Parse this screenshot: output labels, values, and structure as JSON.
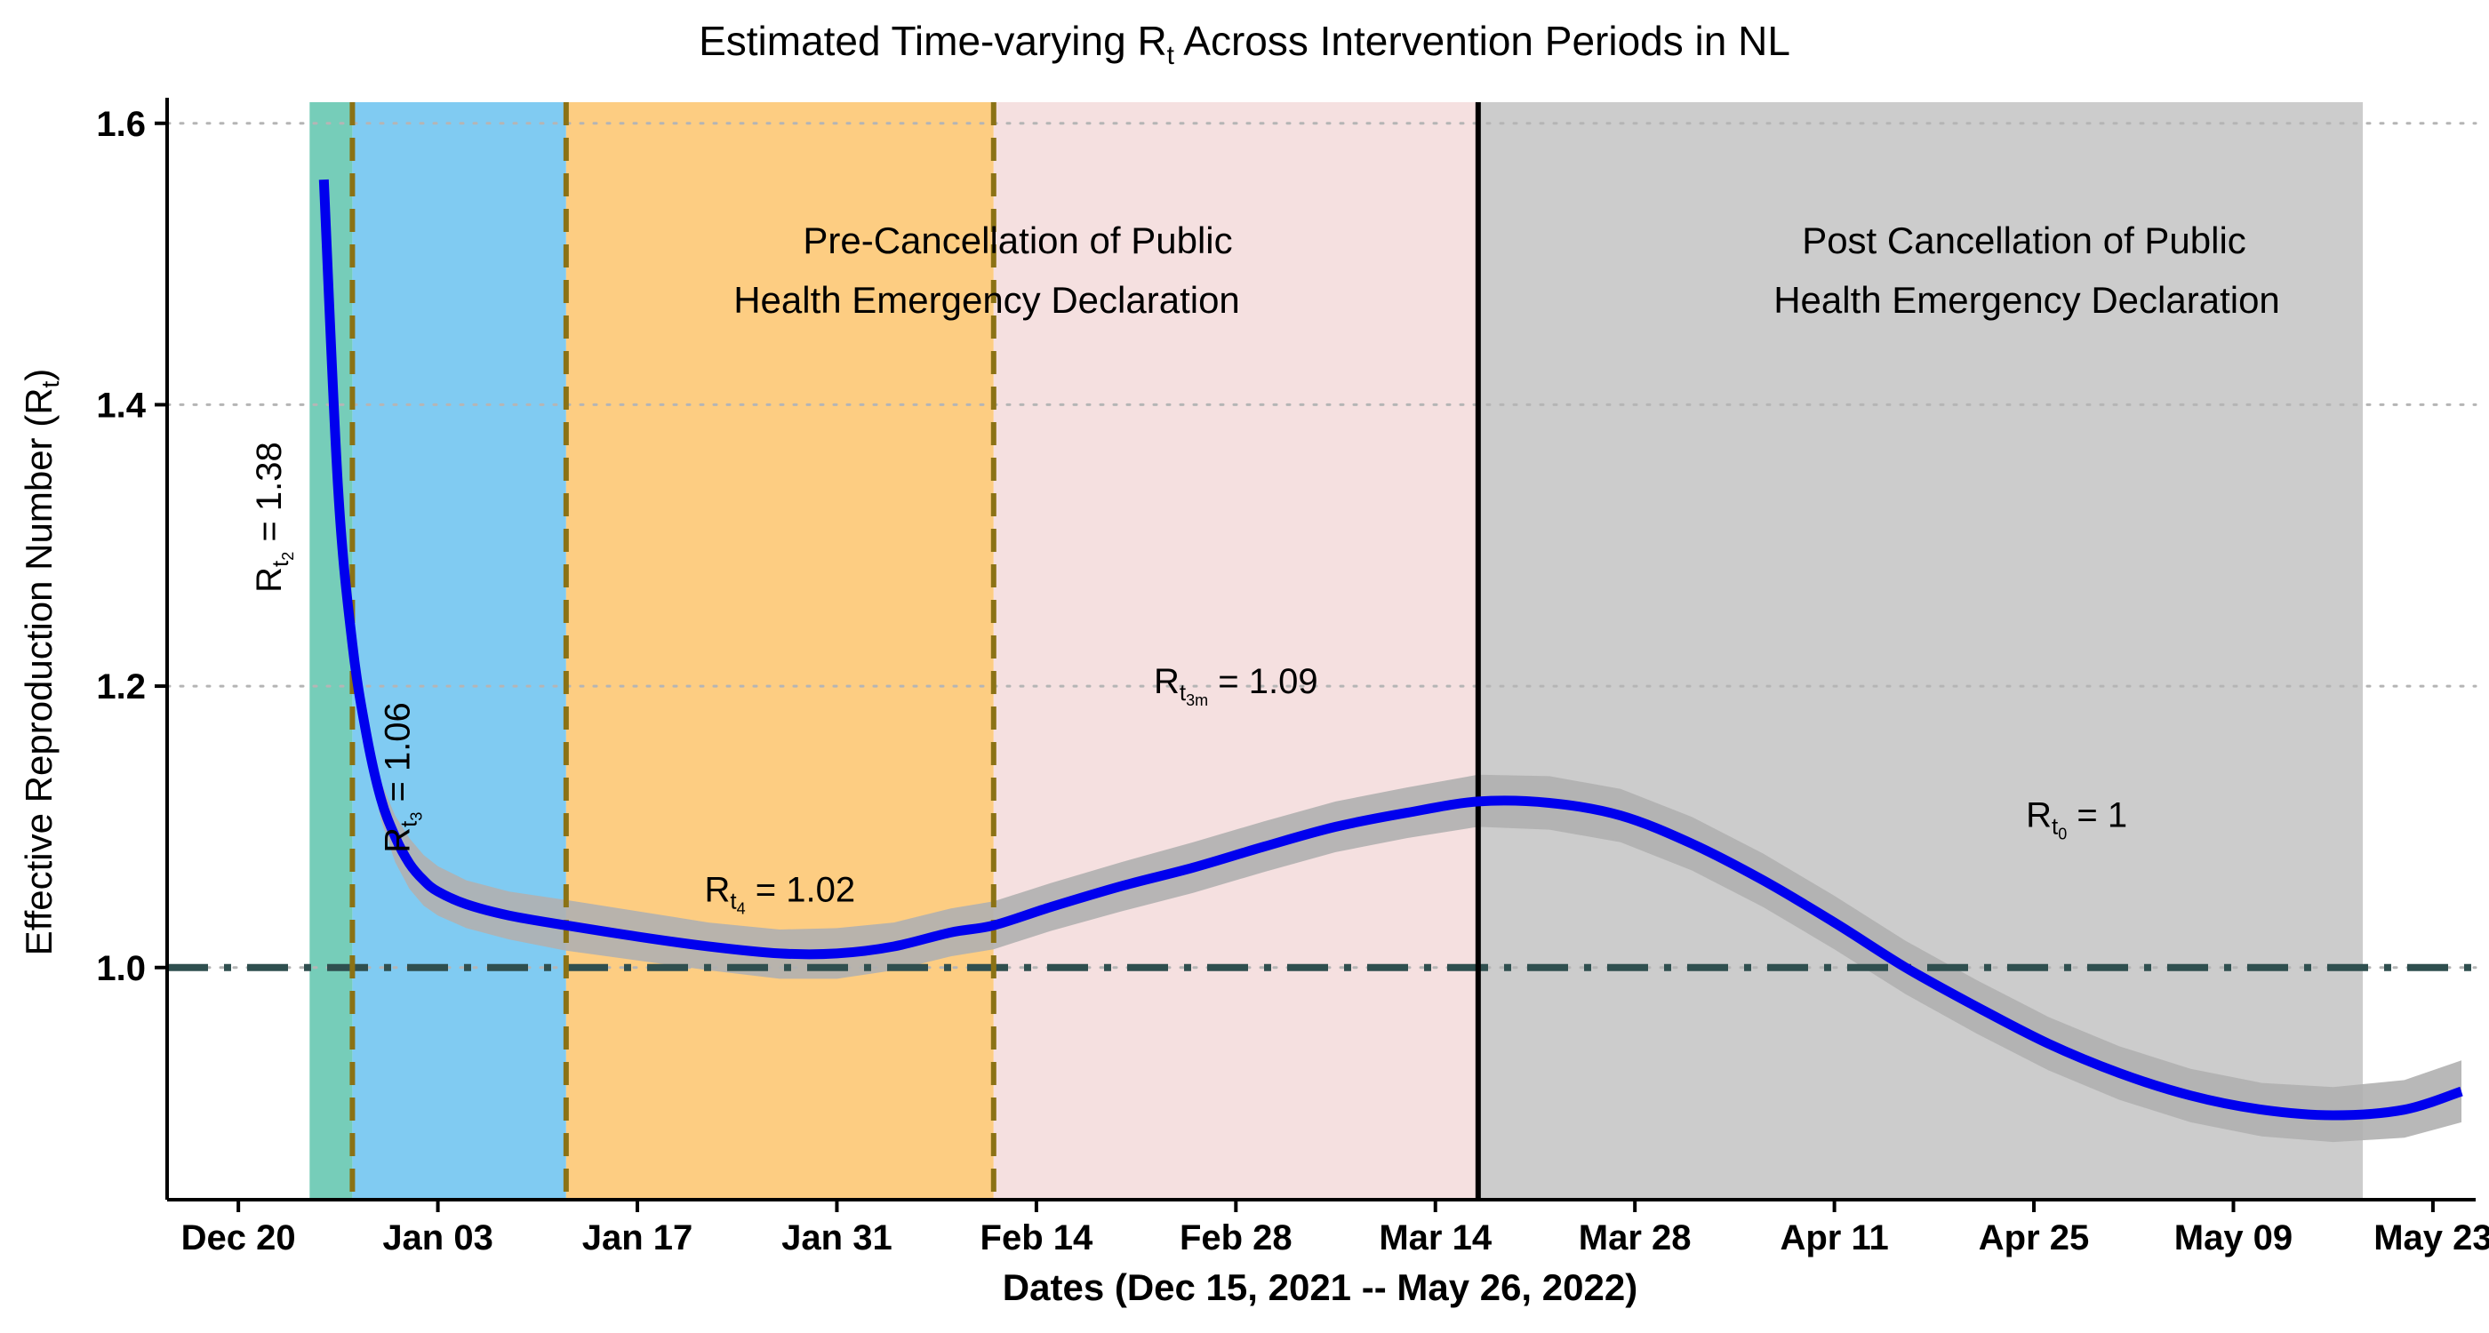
{
  "chart_data": {
    "type": "line",
    "title": {
      "prefix": "Estimated Time-varying R",
      "sub": "t",
      "suffix": " Across Intervention Periods in NL"
    },
    "xlabel": "Dates (Dec 15, 2021 -- May 26, 2022)",
    "ylabel": {
      "prefix": "Effective Reproduction Number (R",
      "sub": "t",
      "suffix": ")"
    },
    "xlim": [
      "2021-12-15",
      "2022-05-26"
    ],
    "ylim": [
      0.835,
      1.615
    ],
    "x_ticks": [
      {
        "date": "2021-12-20",
        "label": "Dec 20"
      },
      {
        "date": "2022-01-03",
        "label": "Jan 03"
      },
      {
        "date": "2022-01-17",
        "label": "Jan 17"
      },
      {
        "date": "2022-01-31",
        "label": "Jan 31"
      },
      {
        "date": "2022-02-14",
        "label": "Feb 14"
      },
      {
        "date": "2022-02-28",
        "label": "Feb 28"
      },
      {
        "date": "2022-03-14",
        "label": "Mar 14"
      },
      {
        "date": "2022-03-28",
        "label": "Mar 28"
      },
      {
        "date": "2022-04-11",
        "label": "Apr 11"
      },
      {
        "date": "2022-04-25",
        "label": "Apr 25"
      },
      {
        "date": "2022-05-09",
        "label": "May 09"
      },
      {
        "date": "2022-05-23",
        "label": "May 23"
      }
    ],
    "y_ticks": [
      {
        "value": 1.0,
        "label": "1.0"
      },
      {
        "value": 1.2,
        "label": "1.2"
      },
      {
        "value": 1.4,
        "label": "1.4"
      },
      {
        "value": 1.6,
        "label": "1.6"
      }
    ],
    "grid": "horizontal dotted",
    "reference_line": {
      "y": 1.0,
      "style": "dash-dot",
      "color": "#2f4f4f"
    },
    "periods": [
      {
        "start": "2021-12-25",
        "end": "2021-12-28",
        "color": "#76cdb9"
      },
      {
        "start": "2021-12-28",
        "end": "2022-01-12",
        "color": "#80cbf2"
      },
      {
        "start": "2022-01-12",
        "end": "2022-02-11",
        "color": "#fdcd82"
      },
      {
        "start": "2022-02-11",
        "end": "2022-03-17",
        "color": "#f5e0e0"
      },
      {
        "start": "2022-03-17",
        "end": "2022-05-26",
        "color": "#cccccc"
      }
    ],
    "dashed_lines": [
      "2021-12-28",
      "2022-01-12",
      "2022-02-11"
    ],
    "solid_line": "2022-03-17",
    "series": [
      {
        "color": "#0000ee",
        "band_color": "#b0b0b0",
        "points": [
          {
            "x": "2021-12-26",
            "y": 1.56,
            "lo": 1.56,
            "hi": 1.56
          },
          {
            "x": "2021-12-27",
            "y": 1.34,
            "lo": 1.34,
            "hi": 1.34
          },
          {
            "x": "2021-12-28",
            "y": 1.23,
            "lo": 1.22,
            "hi": 1.24
          },
          {
            "x": "2021-12-29",
            "y": 1.165,
            "lo": 1.155,
            "hi": 1.175
          },
          {
            "x": "2021-12-30",
            "y": 1.12,
            "lo": 1.105,
            "hi": 1.132
          },
          {
            "x": "2021-12-31",
            "y": 1.093,
            "lo": 1.075,
            "hi": 1.108
          },
          {
            "x": "2022-01-01",
            "y": 1.074,
            "lo": 1.056,
            "hi": 1.092
          },
          {
            "x": "2022-01-02",
            "y": 1.062,
            "lo": 1.044,
            "hi": 1.08
          },
          {
            "x": "2022-01-03",
            "y": 1.054,
            "lo": 1.037,
            "hi": 1.072
          },
          {
            "x": "2022-01-05",
            "y": 1.045,
            "lo": 1.028,
            "hi": 1.062
          },
          {
            "x": "2022-01-08",
            "y": 1.037,
            "lo": 1.02,
            "hi": 1.054
          },
          {
            "x": "2022-01-12",
            "y": 1.03,
            "lo": 1.012,
            "hi": 1.048
          },
          {
            "x": "2022-01-17",
            "y": 1.022,
            "lo": 1.005,
            "hi": 1.04
          },
          {
            "x": "2022-01-22",
            "y": 1.015,
            "lo": 0.998,
            "hi": 1.032
          },
          {
            "x": "2022-01-27",
            "y": 1.01,
            "lo": 0.992,
            "hi": 1.027
          },
          {
            "x": "2022-01-31",
            "y": 1.01,
            "lo": 0.992,
            "hi": 1.028
          },
          {
            "x": "2022-02-04",
            "y": 1.015,
            "lo": 0.998,
            "hi": 1.032
          },
          {
            "x": "2022-02-08",
            "y": 1.025,
            "lo": 1.008,
            "hi": 1.042
          },
          {
            "x": "2022-02-11",
            "y": 1.03,
            "lo": 1.013,
            "hi": 1.047
          },
          {
            "x": "2022-02-15",
            "y": 1.043,
            "lo": 1.026,
            "hi": 1.06
          },
          {
            "x": "2022-02-20",
            "y": 1.058,
            "lo": 1.04,
            "hi": 1.075
          },
          {
            "x": "2022-02-25",
            "y": 1.071,
            "lo": 1.053,
            "hi": 1.089
          },
          {
            "x": "2022-03-02",
            "y": 1.086,
            "lo": 1.068,
            "hi": 1.104
          },
          {
            "x": "2022-03-07",
            "y": 1.1,
            "lo": 1.082,
            "hi": 1.118
          },
          {
            "x": "2022-03-12",
            "y": 1.11,
            "lo": 1.092,
            "hi": 1.128
          },
          {
            "x": "2022-03-17",
            "y": 1.118,
            "lo": 1.1,
            "hi": 1.137
          },
          {
            "x": "2022-03-22",
            "y": 1.117,
            "lo": 1.098,
            "hi": 1.136
          },
          {
            "x": "2022-03-27",
            "y": 1.108,
            "lo": 1.089,
            "hi": 1.127
          },
          {
            "x": "2022-04-01",
            "y": 1.088,
            "lo": 1.069,
            "hi": 1.107
          },
          {
            "x": "2022-04-06",
            "y": 1.062,
            "lo": 1.043,
            "hi": 1.081
          },
          {
            "x": "2022-04-11",
            "y": 1.032,
            "lo": 1.013,
            "hi": 1.051
          },
          {
            "x": "2022-04-16",
            "y": 1.0,
            "lo": 0.981,
            "hi": 1.019
          },
          {
            "x": "2022-04-21",
            "y": 0.972,
            "lo": 0.953,
            "hi": 0.991
          },
          {
            "x": "2022-04-26",
            "y": 0.946,
            "lo": 0.927,
            "hi": 0.965
          },
          {
            "x": "2022-05-01",
            "y": 0.925,
            "lo": 0.906,
            "hi": 0.944
          },
          {
            "x": "2022-05-06",
            "y": 0.909,
            "lo": 0.89,
            "hi": 0.928
          },
          {
            "x": "2022-05-11",
            "y": 0.899,
            "lo": 0.88,
            "hi": 0.918
          },
          {
            "x": "2022-05-16",
            "y": 0.895,
            "lo": 0.876,
            "hi": 0.915
          },
          {
            "x": "2022-05-21",
            "y": 0.899,
            "lo": 0.879,
            "hi": 0.92
          },
          {
            "x": "2022-05-25",
            "y": 0.912,
            "lo": 0.89,
            "hi": 0.934
          }
        ]
      }
    ],
    "annotations": {
      "pre_cancellation": [
        "Pre-Cancellation of Public",
        "Health Emergency Declaration"
      ],
      "post_cancellation": [
        "Post Cancellation of Public",
        "Health Emergency Declaration"
      ]
    },
    "rt_labels": [
      {
        "base": "R",
        "sub": "t",
        "subsub": "2",
        "value": " = 1.38",
        "x": "2021-12-23",
        "y": 1.32,
        "vertical": true
      },
      {
        "base": "R",
        "sub": "t",
        "subsub": "3",
        "value": " = 1.06",
        "x": "2022-01-01",
        "y": 1.135,
        "vertical": true
      },
      {
        "base": "R",
        "sub": "t",
        "subsub": "4",
        "value": " = 1.02",
        "x": "2022-01-27",
        "y": 1.047,
        "vertical": false
      },
      {
        "base": "R",
        "sub": "t",
        "subsub": "3m",
        "value": " = 1.09",
        "x": "2022-02-28",
        "y": 1.195,
        "vertical": false
      },
      {
        "base": "R",
        "sub": "t",
        "subsub": "0",
        "value": " = 1",
        "x": "2022-04-28",
        "y": 1.1,
        "vertical": false
      }
    ]
  }
}
